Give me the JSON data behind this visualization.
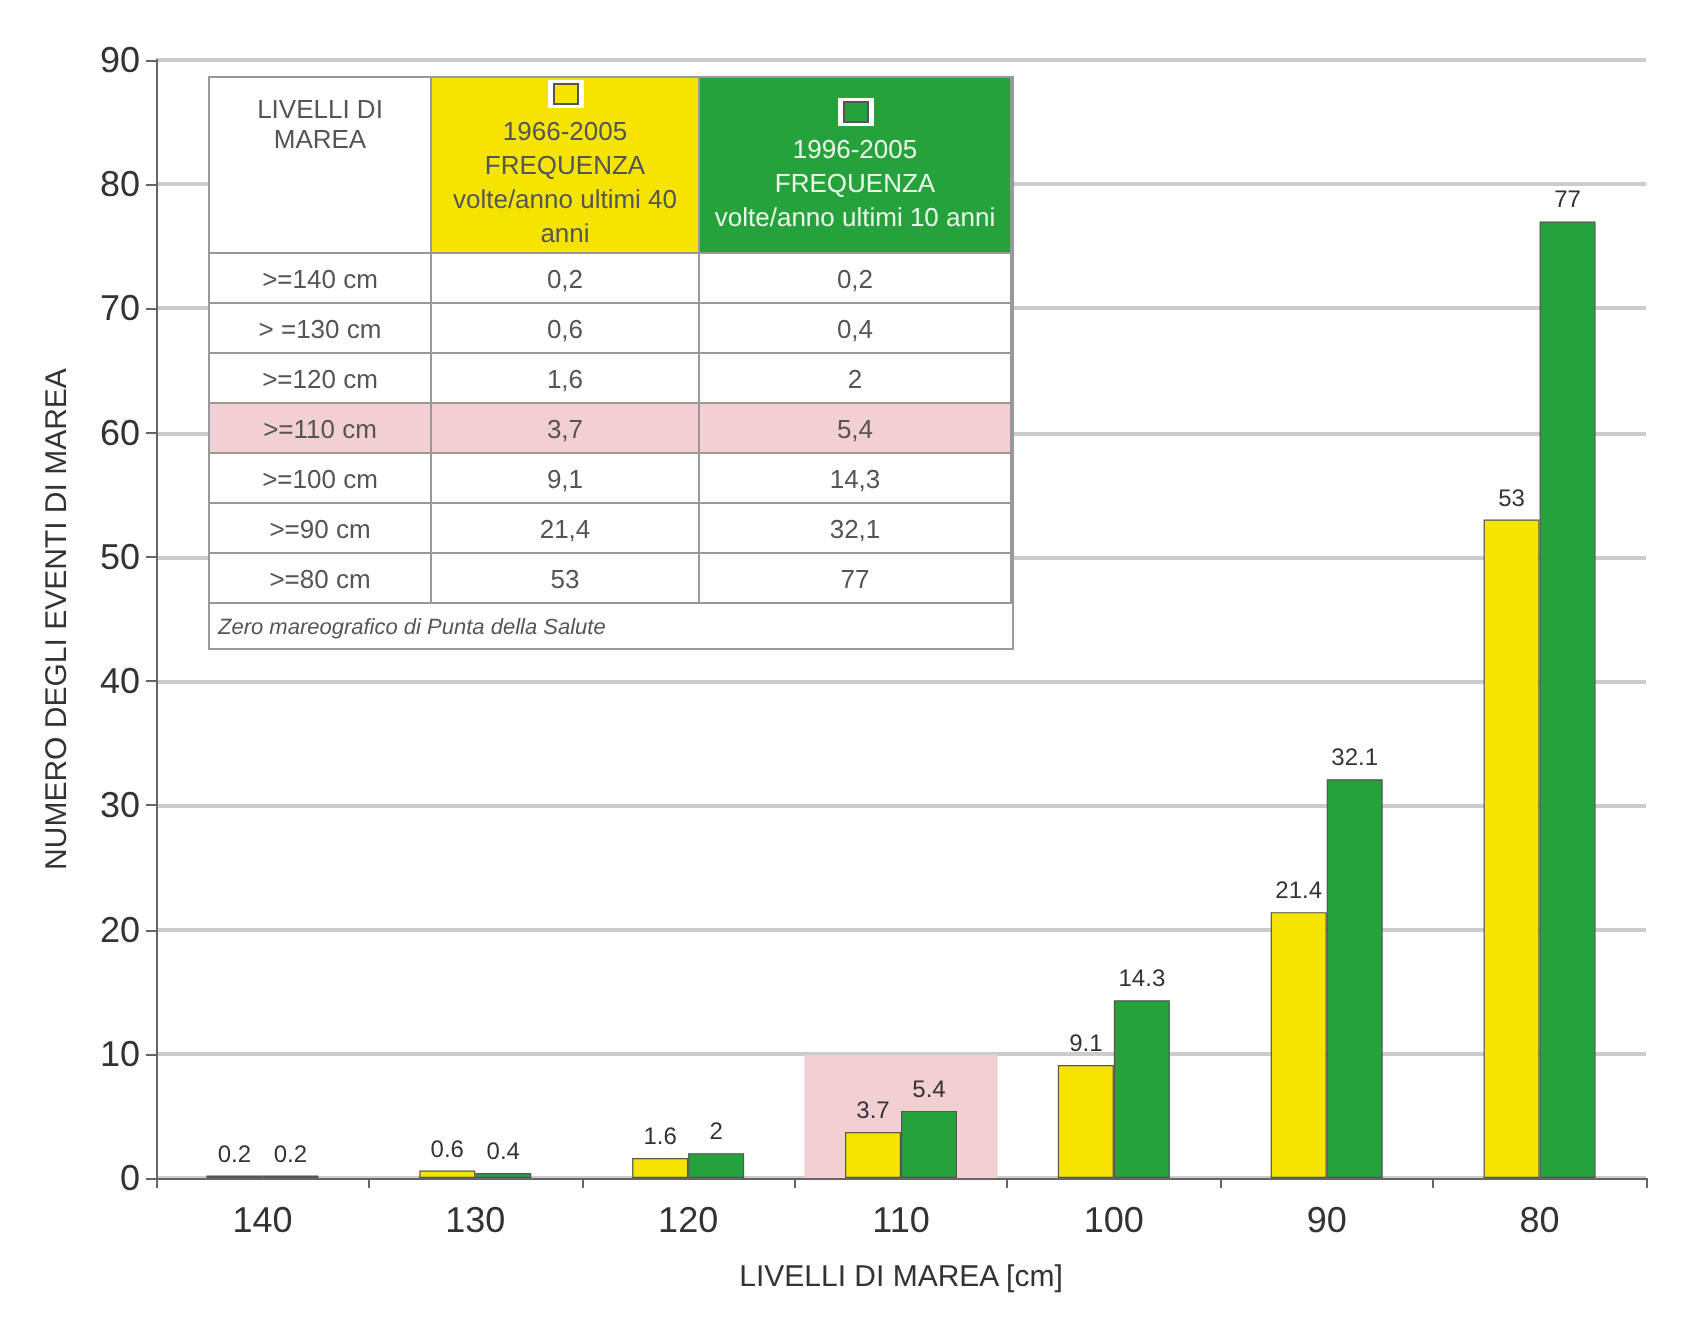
{
  "chart_data": {
    "type": "bar",
    "xlabel": "LIVELLI DI MAREA [cm]",
    "ylabel": "NUMERO DEGLI EVENTI DI MAREA",
    "categories": [
      "140",
      "130",
      "120",
      "110",
      "100",
      "90",
      "80"
    ],
    "series": [
      {
        "name": "1966-2005 FREQUENZA volte/anno ultimi 40 anni",
        "color": "#f5e400",
        "values": [
          0.2,
          0.6,
          1.6,
          3.7,
          9.1,
          21.4,
          53
        ]
      },
      {
        "name": "1996-2005 FREQUENZA volte/anno ultimi 10 anni",
        "color": "#25a23c",
        "values": [
          0.2,
          0.4,
          2,
          5.4,
          14.3,
          32.1,
          77
        ]
      }
    ],
    "ylim": [
      0,
      90
    ],
    "yticks": [
      0,
      10,
      20,
      30,
      40,
      50,
      60,
      70,
      80,
      90
    ],
    "grid": "y",
    "legend": "top left",
    "data_labels": true,
    "bands": [
      {
        "axis": "x",
        "from": "110",
        "to": "110",
        "color": "#f2cfd2"
      }
    ],
    "annotations": [
      "LIVELLI DI MAREA",
      ">=140 cm",
      "0,2",
      "0,2",
      "> =130 cm",
      "0,6",
      "0,4",
      ">=120 cm",
      "1,6",
      "2",
      ">=110 cm",
      "3,7",
      "5,4",
      ">=100 cm",
      "9,1",
      "14,3",
      ">=90 cm",
      "21,4",
      "32,1",
      ">=80 cm",
      "53",
      "77",
      "Zero mareografico di Punta della Salute"
    ]
  }
}
